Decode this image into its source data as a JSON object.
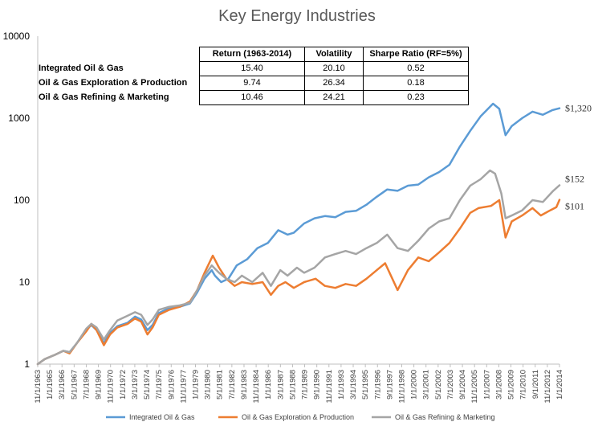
{
  "chart_data": {
    "type": "line",
    "title": "Key Energy Industries",
    "yscale": "log",
    "ylim": [
      1,
      10000
    ],
    "yticks": [
      "1",
      "10",
      "100",
      "1000",
      "10000"
    ],
    "x_tick_labels": [
      "11/1/1963",
      "1/1/1965",
      "3/1/1966",
      "5/1/1967",
      "7/1/1968",
      "9/1/1969",
      "11/1/1970",
      "1/1/1972",
      "3/1/1973",
      "5/1/1974",
      "7/1/1975",
      "9/1/1976",
      "11/1/1977",
      "1/1/1979",
      "3/1/1980",
      "5/1/1981",
      "7/1/1982",
      "9/1/1983",
      "11/1/1984",
      "1/1/1986",
      "3/1/1987",
      "5/1/1988",
      "7/1/1989",
      "9/1/1990",
      "11/1/1991",
      "1/1/1993",
      "3/1/1994",
      "5/1/1995",
      "7/1/1996",
      "9/1/1997",
      "11/1/1998",
      "1/1/2000",
      "3/1/2001",
      "5/1/2002",
      "7/1/2003",
      "9/1/2004",
      "11/1/2005",
      "1/1/2007",
      "3/1/2008",
      "5/1/2009",
      "7/1/2010",
      "9/1/2011",
      "11/1/2012",
      "1/1/2014"
    ],
    "series": [
      {
        "name": "Integrated Oil & Gas",
        "color": "#5B9BD5",
        "end_label": "$1,320",
        "points": [
          [
            1963.83,
            1
          ],
          [
            1964.5,
            1.15
          ],
          [
            1965.5,
            1.3
          ],
          [
            1966.3,
            1.45
          ],
          [
            1966.9,
            1.4
          ],
          [
            1967.6,
            1.8
          ],
          [
            1968.5,
            2.6
          ],
          [
            1969.0,
            3.0
          ],
          [
            1969.5,
            2.6
          ],
          [
            1970.2,
            1.8
          ],
          [
            1970.8,
            2.4
          ],
          [
            1971.5,
            2.9
          ],
          [
            1972.5,
            3.2
          ],
          [
            1973.2,
            3.8
          ],
          [
            1973.8,
            3.5
          ],
          [
            1974.4,
            2.6
          ],
          [
            1974.9,
            3.0
          ],
          [
            1975.5,
            4.2
          ],
          [
            1976.5,
            4.8
          ],
          [
            1977.5,
            5.0
          ],
          [
            1978.5,
            5.5
          ],
          [
            1979.2,
            7.5
          ],
          [
            1979.9,
            11
          ],
          [
            1980.6,
            14
          ],
          [
            1980.9,
            12
          ],
          [
            1981.5,
            10
          ],
          [
            1982.2,
            11
          ],
          [
            1983.0,
            16
          ],
          [
            1984.0,
            19
          ],
          [
            1985.0,
            26
          ],
          [
            1986.0,
            30
          ],
          [
            1987.0,
            43
          ],
          [
            1987.9,
            38
          ],
          [
            1988.5,
            40
          ],
          [
            1989.5,
            52
          ],
          [
            1990.5,
            60
          ],
          [
            1991.5,
            64
          ],
          [
            1992.5,
            62
          ],
          [
            1993.5,
            72
          ],
          [
            1994.5,
            74
          ],
          [
            1995.5,
            88
          ],
          [
            1996.5,
            110
          ],
          [
            1997.5,
            135
          ],
          [
            1998.5,
            130
          ],
          [
            1999.5,
            150
          ],
          [
            2000.5,
            155
          ],
          [
            2001.5,
            190
          ],
          [
            2002.5,
            220
          ],
          [
            2003.5,
            270
          ],
          [
            2004.5,
            450
          ],
          [
            2005.5,
            700
          ],
          [
            2006.5,
            1050
          ],
          [
            2007.7,
            1500
          ],
          [
            2008.3,
            1300
          ],
          [
            2008.9,
            620
          ],
          [
            2009.5,
            800
          ],
          [
            2010.5,
            1000
          ],
          [
            2011.5,
            1200
          ],
          [
            2012.5,
            1100
          ],
          [
            2013.4,
            1250
          ],
          [
            2014.1,
            1320
          ]
        ]
      },
      {
        "name": "Oil & Gas Exploration & Production",
        "color": "#ED7D31",
        "end_label": "$101",
        "points": [
          [
            1963.83,
            1
          ],
          [
            1964.5,
            1.15
          ],
          [
            1965.5,
            1.3
          ],
          [
            1966.3,
            1.45
          ],
          [
            1966.9,
            1.35
          ],
          [
            1967.6,
            1.8
          ],
          [
            1968.5,
            2.5
          ],
          [
            1969.0,
            3.1
          ],
          [
            1969.5,
            2.6
          ],
          [
            1970.2,
            1.7
          ],
          [
            1970.8,
            2.3
          ],
          [
            1971.5,
            2.8
          ],
          [
            1972.5,
            3.1
          ],
          [
            1973.2,
            3.6
          ],
          [
            1973.8,
            3.3
          ],
          [
            1974.4,
            2.3
          ],
          [
            1974.9,
            2.8
          ],
          [
            1975.5,
            4.0
          ],
          [
            1976.5,
            4.6
          ],
          [
            1977.5,
            5.0
          ],
          [
            1978.5,
            5.8
          ],
          [
            1979.2,
            8
          ],
          [
            1979.9,
            13
          ],
          [
            1980.7,
            21
          ],
          [
            1981.3,
            15
          ],
          [
            1982.0,
            11
          ],
          [
            1982.8,
            9
          ],
          [
            1983.5,
            10
          ],
          [
            1984.5,
            9.5
          ],
          [
            1985.5,
            10
          ],
          [
            1986.3,
            7
          ],
          [
            1987.0,
            9
          ],
          [
            1987.7,
            10
          ],
          [
            1988.5,
            8.5
          ],
          [
            1989.5,
            10
          ],
          [
            1990.6,
            11
          ],
          [
            1991.5,
            9
          ],
          [
            1992.5,
            8.5
          ],
          [
            1993.5,
            9.5
          ],
          [
            1994.5,
            9
          ],
          [
            1995.5,
            11
          ],
          [
            1996.5,
            14
          ],
          [
            1997.3,
            17
          ],
          [
            1998.0,
            11
          ],
          [
            1998.5,
            8
          ],
          [
            1999.5,
            14
          ],
          [
            2000.5,
            20
          ],
          [
            2001.5,
            18
          ],
          [
            2002.5,
            23
          ],
          [
            2003.5,
            30
          ],
          [
            2004.5,
            45
          ],
          [
            2005.5,
            70
          ],
          [
            2006.3,
            80
          ],
          [
            2007.5,
            85
          ],
          [
            2008.3,
            100
          ],
          [
            2008.9,
            35
          ],
          [
            2009.5,
            55
          ],
          [
            2010.5,
            65
          ],
          [
            2011.5,
            80
          ],
          [
            2012.3,
            65
          ],
          [
            2013.2,
            75
          ],
          [
            2013.8,
            82
          ],
          [
            2014.1,
            101
          ]
        ]
      },
      {
        "name": "Oil & Gas Refining & Marketing",
        "color": "#A5A5A5",
        "end_label": "$152",
        "points": [
          [
            1963.83,
            1
          ],
          [
            1964.5,
            1.15
          ],
          [
            1965.5,
            1.3
          ],
          [
            1966.3,
            1.45
          ],
          [
            1966.9,
            1.4
          ],
          [
            1967.6,
            1.8
          ],
          [
            1968.5,
            2.7
          ],
          [
            1969.0,
            3.1
          ],
          [
            1969.5,
            2.8
          ],
          [
            1970.2,
            2.0
          ],
          [
            1970.8,
            2.6
          ],
          [
            1971.5,
            3.4
          ],
          [
            1972.5,
            3.9
          ],
          [
            1973.2,
            4.3
          ],
          [
            1973.8,
            4.0
          ],
          [
            1974.4,
            3.0
          ],
          [
            1974.9,
            3.5
          ],
          [
            1975.5,
            4.6
          ],
          [
            1976.5,
            5.0
          ],
          [
            1977.5,
            5.2
          ],
          [
            1978.5,
            5.6
          ],
          [
            1979.2,
            8
          ],
          [
            1979.9,
            12
          ],
          [
            1980.6,
            16
          ],
          [
            1981.3,
            13
          ],
          [
            1982.0,
            11
          ],
          [
            1982.8,
            10
          ],
          [
            1983.5,
            12
          ],
          [
            1984.5,
            10
          ],
          [
            1985.5,
            13
          ],
          [
            1986.3,
            9
          ],
          [
            1987.2,
            14
          ],
          [
            1987.9,
            12
          ],
          [
            1988.8,
            15
          ],
          [
            1989.5,
            13
          ],
          [
            1990.5,
            15
          ],
          [
            1991.5,
            20
          ],
          [
            1992.5,
            22
          ],
          [
            1993.5,
            24
          ],
          [
            1994.5,
            22
          ],
          [
            1995.5,
            26
          ],
          [
            1996.5,
            30
          ],
          [
            1997.5,
            38
          ],
          [
            1998.5,
            26
          ],
          [
            1999.5,
            24
          ],
          [
            2000.5,
            32
          ],
          [
            2001.5,
            45
          ],
          [
            2002.5,
            55
          ],
          [
            2003.5,
            60
          ],
          [
            2004.5,
            100
          ],
          [
            2005.5,
            150
          ],
          [
            2006.5,
            180
          ],
          [
            2007.4,
            230
          ],
          [
            2007.9,
            210
          ],
          [
            2008.5,
            120
          ],
          [
            2008.9,
            60
          ],
          [
            2009.5,
            65
          ],
          [
            2010.5,
            75
          ],
          [
            2011.5,
            100
          ],
          [
            2012.5,
            95
          ],
          [
            2013.5,
            130
          ],
          [
            2014.1,
            152
          ]
        ]
      }
    ]
  },
  "table": {
    "headers": [
      "Return (1963-2014)",
      "Volatility",
      "Sharpe Ratio (RF=5%)"
    ],
    "rows": [
      {
        "label": "Integrated Oil & Gas",
        "values": [
          "15.40",
          "20.10",
          "0.52"
        ]
      },
      {
        "label": "Oil & Gas Exploration & Production",
        "values": [
          "9.74",
          "26.34",
          "0.18"
        ]
      },
      {
        "label": "Oil & Gas Refining & Marketing",
        "values": [
          "10.46",
          "24.21",
          "0.23"
        ]
      }
    ]
  }
}
